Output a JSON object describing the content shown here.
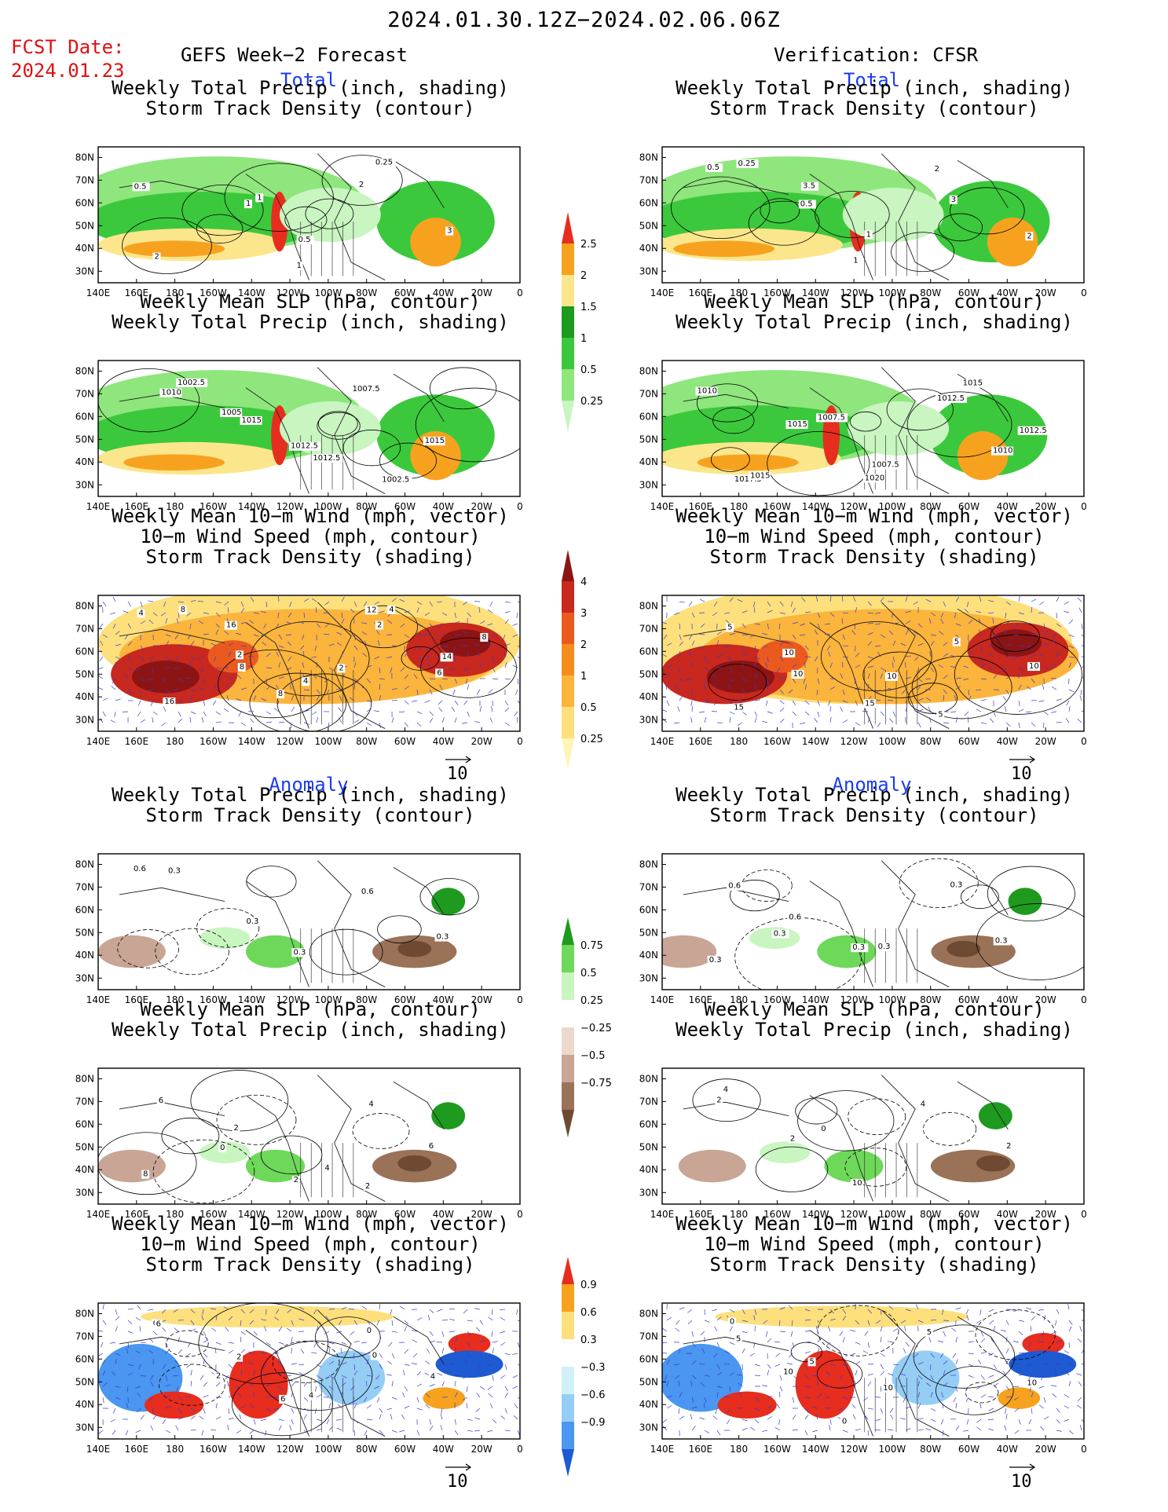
{
  "header": {
    "period": "2024.01.30.12Z−2024.02.06.06Z",
    "fcst_label": "FCST Date:",
    "fcst_date": "2024.01.23",
    "left_title": "GEFS Week−2 Forecast",
    "right_title": "Verification: CFSR"
  },
  "sections": {
    "total": "Total",
    "anomaly": "Anomaly"
  },
  "panel_titles": {
    "precip_storm": [
      "Weekly Total Precip (inch, shading)",
      "Storm Track Density (contour)"
    ],
    "slp_precip": [
      "Weekly Mean SLP (hPa, contour)",
      "Weekly Total Precip (inch, shading)"
    ],
    "wind_storm": [
      "Weekly Mean 10−m Wind (mph, vector)",
      "10−m Wind Speed (mph, contour)",
      "Storm Track Density (shading)"
    ]
  },
  "axes": {
    "lat_labels": [
      "80N",
      "70N",
      "60N",
      "50N",
      "40N",
      "30N"
    ],
    "lon_labels": [
      "140E",
      "160E",
      "180",
      "160W",
      "140W",
      "120W",
      "100W",
      "80W",
      "60W",
      "40W",
      "20W",
      "0"
    ]
  },
  "vector_ref": "10",
  "colorbars": {
    "precip_total": {
      "labels": [
        "0.25",
        "0.5",
        "1",
        "1.5",
        "2",
        "2.5"
      ],
      "colors": [
        "#c8f5c0",
        "#8ee67c",
        "#3cc83c",
        "#1e9a1e",
        "#fce68c",
        "#f7a21e",
        "#e62d1e"
      ]
    },
    "storm_total": {
      "labels": [
        "0.25",
        "0.5",
        "1",
        "2",
        "3",
        "4"
      ],
      "colors": [
        "#fff5b4",
        "#fde07c",
        "#fbb43c",
        "#f78c1e",
        "#ea5a1e",
        "#c8281e",
        "#8c1414"
      ]
    },
    "precip_anom": {
      "labels": [
        "−0.75",
        "−0.5",
        "−0.25",
        "0.25",
        "0.5",
        "0.75"
      ],
      "colors": [
        "#6e4a32",
        "#9a7258",
        "#c8a594",
        "#ecd8cc",
        "#ffffff",
        "#c8f5c0",
        "#6ed85a",
        "#1e9a1e"
      ]
    },
    "storm_anom": {
      "labels": [
        "−0.9",
        "−0.6",
        "−0.3",
        "0.3",
        "0.6",
        "0.9"
      ],
      "colors": [
        "#1e5ad2",
        "#4a96f0",
        "#96cdf5",
        "#d2f0fa",
        "#ffffff",
        "#fde07c",
        "#f7a21e",
        "#e62d1e"
      ]
    }
  },
  "map_labels": {
    "L_total_precip": [
      "0.5",
      "1",
      "1",
      "2",
      "3",
      "2",
      "1",
      "0.5",
      "0.25"
    ],
    "R_total_precip": [
      "0.5",
      "0.5",
      "1",
      "3",
      "2",
      "0.25",
      "3.5",
      "1",
      "2"
    ],
    "L_total_slp": [
      "1010",
      "1015",
      "1012.5",
      "1007.5",
      "1015",
      "1002.5",
      "1005",
      "1012.5",
      "1002.5"
    ],
    "R_total_slp": [
      "1010",
      "1015",
      "1020",
      "1012.5",
      "1010",
      "1017.5",
      "1007.5",
      "1007.5",
      "1015",
      "1012.5",
      "1015"
    ],
    "L_total_wind": [
      "4",
      "8",
      "8",
      "2",
      "6",
      "8",
      "2",
      "4",
      "12",
      "14",
      "16",
      "16",
      "2",
      "4",
      "8"
    ],
    "R_total_wind": [
      "5",
      "10",
      "15",
      "5",
      "10",
      "15",
      "10",
      "10",
      "5"
    ],
    "L_anom_precip": [
      "0.6",
      "0.3",
      "0.3",
      "0.6",
      "0.3",
      "0.3"
    ],
    "R_anom_precip": [
      "0.6",
      "0.3",
      "0.3",
      "0.3",
      "0.3",
      "0.3",
      "0.6",
      "0.3"
    ],
    "L_anom_slp": [
      "6",
      "0",
      "2",
      "4",
      "6",
      "8",
      "2",
      "4",
      "2"
    ],
    "R_anom_slp": [
      "2",
      "2",
      "10",
      "4",
      "2",
      "4",
      "0"
    ],
    "L_anom_wind": [
      "0",
      "2",
      "6",
      "0",
      "4",
      "6",
      "2",
      "4",
      "0"
    ],
    "R_anom_wind": [
      "5",
      "10",
      "0",
      "5",
      "10",
      "0",
      "5",
      "10"
    ]
  }
}
